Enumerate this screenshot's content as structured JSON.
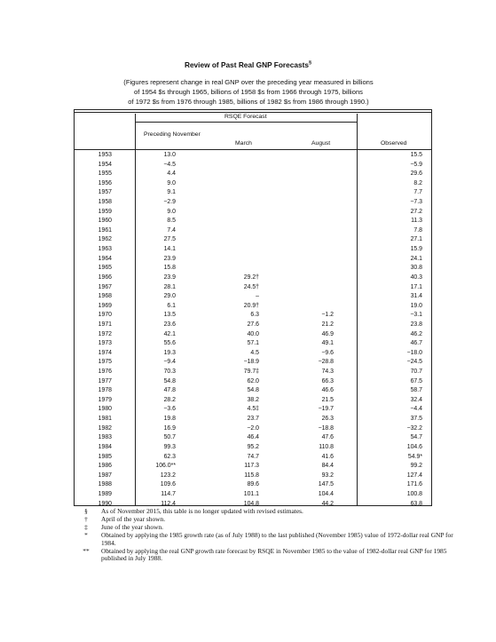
{
  "title": "Review of Past Real GNP Forecasts",
  "title_mark": "§",
  "subtitle": [
    "(Figures represent change in real GNP over the preceding year measured in billions",
    "of 1954 $s through 1965, billions of 1958 $s from 1966 through 1975, billions",
    "of 1972 $s from 1976 through 1985, billions of 1982 $s from 1986 through 1990.)"
  ],
  "headers": {
    "rsqe": "RSQE Forecast",
    "preceding_november": "Preceding November",
    "march": "March",
    "august": "August",
    "observed": "Observed"
  },
  "rows": [
    {
      "year": "1953",
      "pn": "13.0",
      "mar": "",
      "aug": "",
      "obs": "15.5"
    },
    {
      "year": "1954",
      "pn": "−4.5",
      "mar": "",
      "aug": "",
      "obs": "−5.9"
    },
    {
      "year": "1955",
      "pn": "4.4",
      "mar": "",
      "aug": "",
      "obs": "29.6"
    },
    {
      "year": "1956",
      "pn": "9.0",
      "mar": "",
      "aug": "",
      "obs": "8.2"
    },
    {
      "year": "1957",
      "pn": "9.1",
      "mar": "",
      "aug": "",
      "obs": "7.7"
    },
    {
      "year": "1958",
      "pn": "−2.9",
      "mar": "",
      "aug": "",
      "obs": "−7.3"
    },
    {
      "year": "1959",
      "pn": "9.0",
      "mar": "",
      "aug": "",
      "obs": "27.2"
    },
    {
      "year": "1960",
      "pn": "8.5",
      "mar": "",
      "aug": "",
      "obs": "11.3"
    },
    {
      "year": "1961",
      "pn": "7.4",
      "mar": "",
      "aug": "",
      "obs": "7.8"
    },
    {
      "year": "1962",
      "pn": "27.5",
      "mar": "",
      "aug": "",
      "obs": "27.1"
    },
    {
      "year": "1963",
      "pn": "14.1",
      "mar": "",
      "aug": "",
      "obs": "15.9"
    },
    {
      "year": "1964",
      "pn": "23.9",
      "mar": "",
      "aug": "",
      "obs": "24.1"
    },
    {
      "year": "1965",
      "pn": "15.8",
      "mar": "",
      "aug": "",
      "obs": "30.8"
    },
    {
      "year": "1966",
      "pn": "23.9",
      "mar": "29.2†",
      "aug": "",
      "obs": "40.3"
    },
    {
      "year": "1967",
      "pn": "28.1",
      "mar": "24.5†",
      "aug": "",
      "obs": "17.1"
    },
    {
      "year": "1968",
      "pn": "29.0",
      "mar": "–",
      "aug": "",
      "obs": "31.4"
    },
    {
      "year": "1969",
      "pn": "6.1",
      "mar": "20.9†",
      "aug": "",
      "obs": "19.0"
    },
    {
      "year": "1970",
      "pn": "13.5",
      "mar": "6.3",
      "aug": "−1.2",
      "obs": "−3.1"
    },
    {
      "year": "1971",
      "pn": "23.6",
      "mar": "27.6",
      "aug": "21.2",
      "obs": "23.8"
    },
    {
      "year": "1972",
      "pn": "42.1",
      "mar": "40.0",
      "aug": "46.9",
      "obs": "46.2"
    },
    {
      "year": "1973",
      "pn": "55.6",
      "mar": "57.1",
      "aug": "49.1",
      "obs": "46.7"
    },
    {
      "year": "1974",
      "pn": "19.3",
      "mar": "4.5",
      "aug": "−9.6",
      "obs": "−18.0"
    },
    {
      "year": "1975",
      "pn": "−9.4",
      "mar": "−18.9",
      "aug": "−28.8",
      "obs": "−24.5"
    },
    {
      "year": "1976",
      "pn": "70.3",
      "mar": "79.7‡",
      "aug": "74.3",
      "obs": "70.7"
    },
    {
      "year": "1977",
      "pn": "54.8",
      "mar": "62.0",
      "aug": "66.3",
      "obs": "67.5"
    },
    {
      "year": "1978",
      "pn": "47.8",
      "mar": "54.8",
      "aug": "46.6",
      "obs": "58.7"
    },
    {
      "year": "1979",
      "pn": "28.2",
      "mar": "38.2",
      "aug": "21.5",
      "obs": "32.4"
    },
    {
      "year": "1980",
      "pn": "−3.6",
      "mar": "4.5‡",
      "aug": "−19.7",
      "obs": "−4.4"
    },
    {
      "year": "1981",
      "pn": "19.8",
      "mar": "23.7",
      "aug": "26.3",
      "obs": "37.5"
    },
    {
      "year": "1982",
      "pn": "16.9",
      "mar": "−2.0",
      "aug": "−18.8",
      "obs": "−32.2"
    },
    {
      "year": "1983",
      "pn": "50.7",
      "mar": "46.4",
      "aug": "47.6",
      "obs": "54.7"
    },
    {
      "year": "1984",
      "pn": "99.3",
      "mar": "95.2",
      "aug": "110.8",
      "obs": "104.6"
    },
    {
      "year": "1985",
      "pn": "62.3",
      "mar": "74.7",
      "aug": "41.6",
      "obs": "54.9*"
    },
    {
      "year": "1986",
      "pn": "106.0**",
      "mar": "117.3",
      "aug": "84.4",
      "obs": "99.2"
    },
    {
      "year": "1987",
      "pn": "123.2",
      "mar": "115.8",
      "aug": "93.2",
      "obs": "127.4"
    },
    {
      "year": "1988",
      "pn": "109.6",
      "mar": "89.6",
      "aug": "147.5",
      "obs": "171.6"
    },
    {
      "year": "1989",
      "pn": "114.7",
      "mar": "101.1",
      "aug": "104.4",
      "obs": "100.8"
    },
    {
      "year": "1990",
      "pn": "112.4",
      "mar": "104.8",
      "aug": "44.2",
      "obs": "63.8"
    }
  ],
  "notes": [
    {
      "sym": "§",
      "text": "As of November 2015, this table is no longer updated with revised estimates."
    },
    {
      "sym": "†",
      "text": "April of the year shown."
    },
    {
      "sym": "‡",
      "text": "June of the year shown."
    },
    {
      "sym": "*",
      "text": "Obtained by applying the 1985 growth rate (as of July 1988) to the last published (November 1985) value of 1972-dollar real GNP for 1984."
    },
    {
      "sym": "**",
      "text": "Obtained by applying the real GNP growth rate forecast by RSQE in November 1985 to the value of 1982-dollar real GNP for 1985 published in July 1988."
    }
  ]
}
